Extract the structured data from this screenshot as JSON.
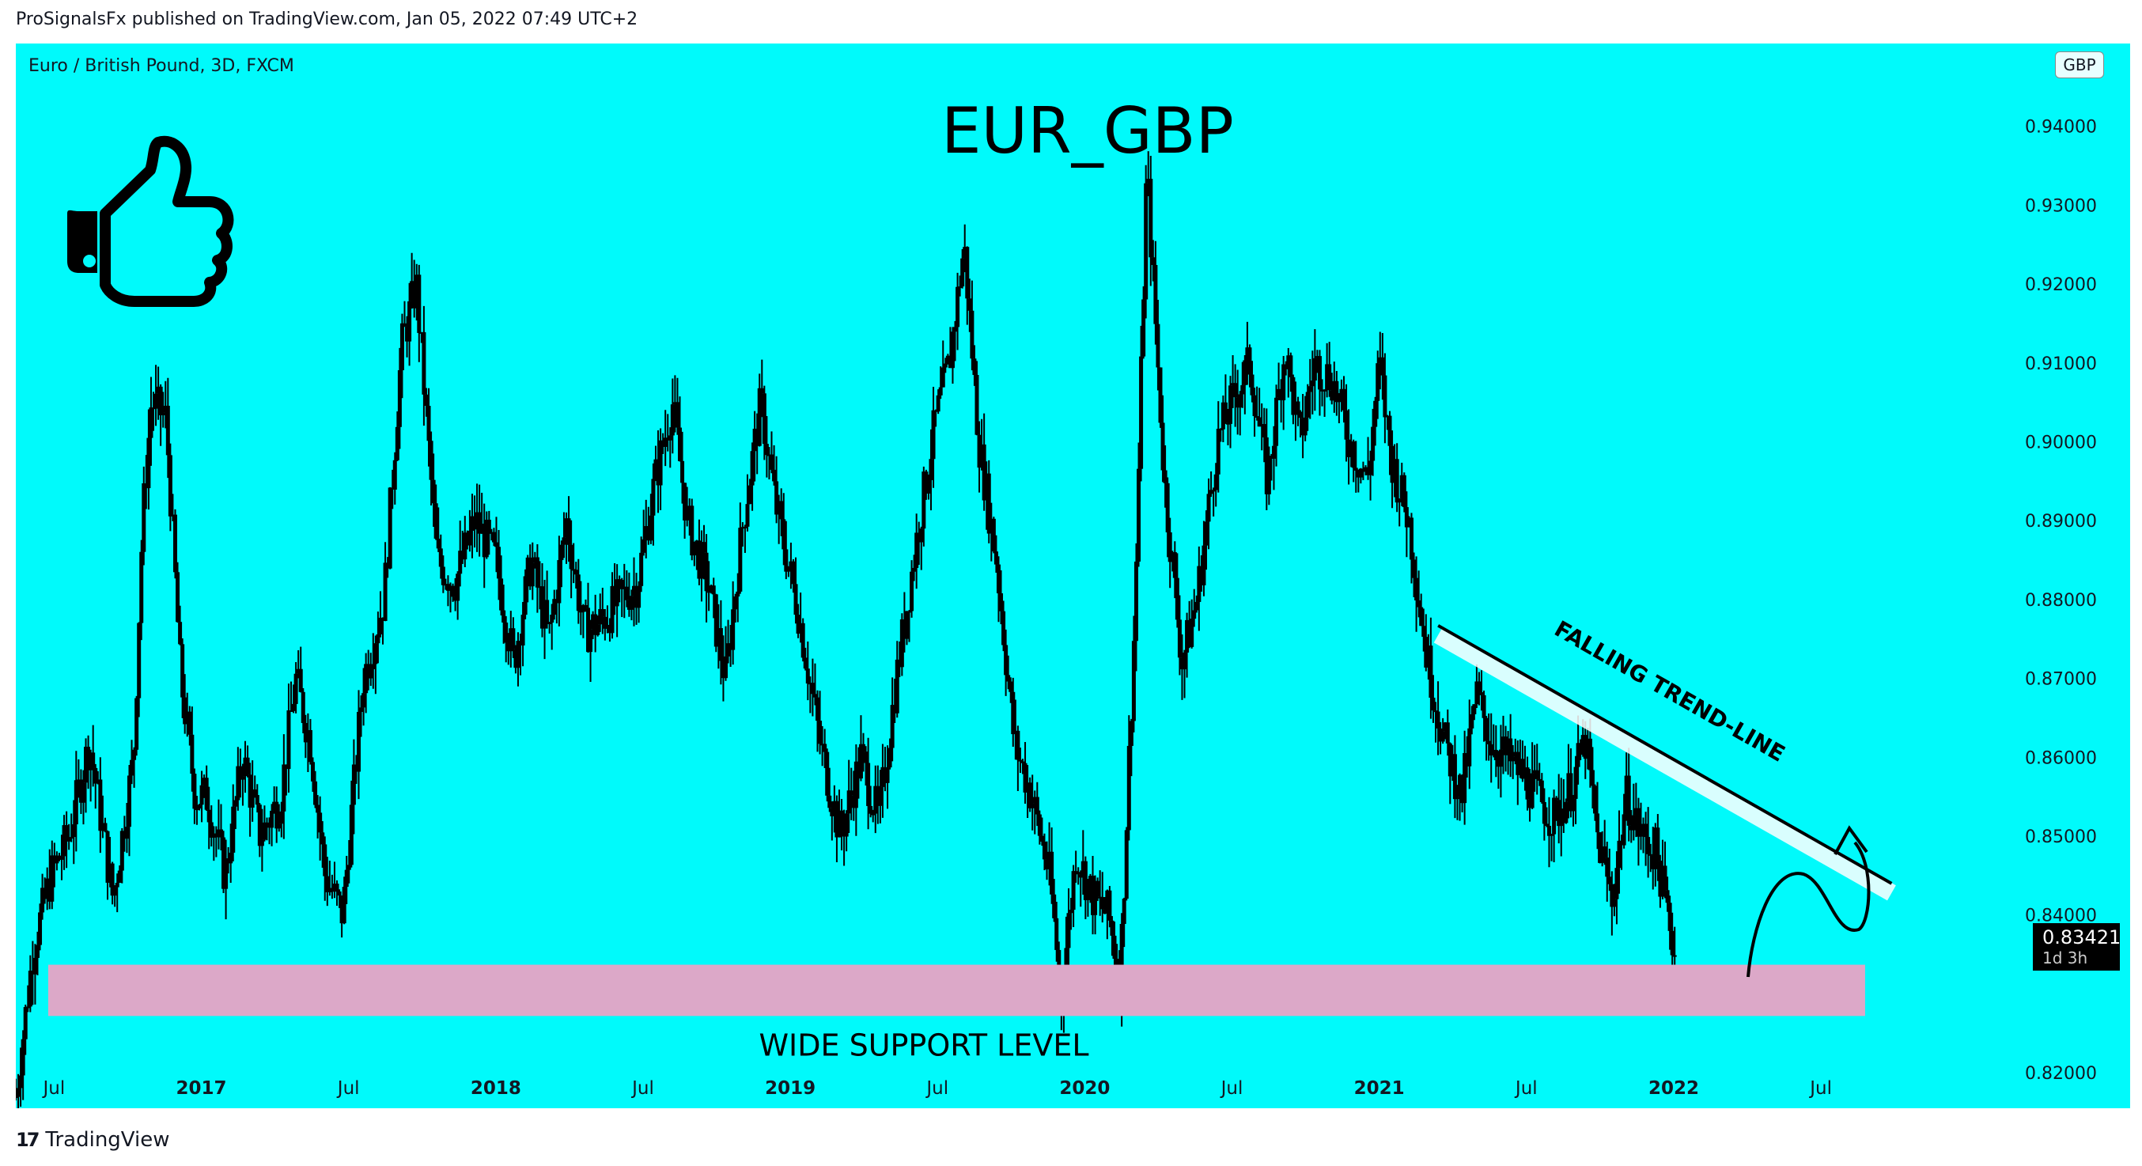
{
  "header": {
    "published": "ProSignalsFx published on TradingView.com, Jan 05, 2022 07:49 UTC+2"
  },
  "footer": {
    "brand": "TradingView",
    "logo_glyph": "17"
  },
  "chart_data": {
    "type": "candlestick",
    "symbol": "Euro / British Pound, 3D, FXCM",
    "title": "EUR_GBP",
    "currency": "GBP",
    "y_ticks": [
      "0.94000",
      "0.93000",
      "0.92000",
      "0.91000",
      "0.90000",
      "0.89000",
      "0.88000",
      "0.87000",
      "0.86000",
      "0.85000",
      "0.84000",
      "0.82000"
    ],
    "y_tick_values": [
      0.94,
      0.93,
      0.92,
      0.91,
      0.9,
      0.89,
      0.88,
      0.87,
      0.86,
      0.85,
      0.84,
      0.82
    ],
    "ylim": [
      0.8155,
      0.9505
    ],
    "x_ticks": [
      "Jul",
      "2017",
      "Jul",
      "2018",
      "Jul",
      "2019",
      "Jul",
      "2020",
      "Jul",
      "2021",
      "Jul",
      "2022",
      "Jul"
    ],
    "x_tick_values": [
      2016.5,
      2017.0,
      2017.5,
      2018.0,
      2018.5,
      2019.0,
      2019.5,
      2020.0,
      2020.5,
      2021.0,
      2021.5,
      2022.0,
      2022.5
    ],
    "x_bold_ticks": [
      "2017",
      "2018",
      "2019",
      "2020",
      "2021",
      "2022"
    ],
    "xlim": [
      2016.37,
      2023.55
    ],
    "price_series": [
      [
        2016.37,
        0.817
      ],
      [
        2016.43,
        0.836
      ],
      [
        2016.49,
        0.845
      ],
      [
        2016.55,
        0.85
      ],
      [
        2016.62,
        0.862
      ],
      [
        2016.7,
        0.842
      ],
      [
        2016.77,
        0.86
      ],
      [
        2016.8,
        0.89
      ],
      [
        2016.83,
        0.905
      ],
      [
        2016.88,
        0.903
      ],
      [
        2016.93,
        0.87
      ],
      [
        2016.98,
        0.855
      ],
      [
        2017.02,
        0.855
      ],
      [
        2017.08,
        0.845
      ],
      [
        2017.14,
        0.86
      ],
      [
        2017.2,
        0.85
      ],
      [
        2017.27,
        0.855
      ],
      [
        2017.32,
        0.87
      ],
      [
        2017.37,
        0.862
      ],
      [
        2017.42,
        0.845
      ],
      [
        2017.48,
        0.84
      ],
      [
        2017.55,
        0.87
      ],
      [
        2017.62,
        0.88
      ],
      [
        2017.68,
        0.912
      ],
      [
        2017.73,
        0.92
      ],
      [
        2017.76,
        0.905
      ],
      [
        2017.8,
        0.885
      ],
      [
        2017.86,
        0.882
      ],
      [
        2017.93,
        0.89
      ],
      [
        2018.0,
        0.885
      ],
      [
        2018.06,
        0.872
      ],
      [
        2018.12,
        0.885
      ],
      [
        2018.18,
        0.875
      ],
      [
        2018.24,
        0.89
      ],
      [
        2018.3,
        0.876
      ],
      [
        2018.35,
        0.877
      ],
      [
        2018.42,
        0.88
      ],
      [
        2018.48,
        0.882
      ],
      [
        2018.54,
        0.895
      ],
      [
        2018.6,
        0.905
      ],
      [
        2018.65,
        0.89
      ],
      [
        2018.72,
        0.882
      ],
      [
        2018.78,
        0.87
      ],
      [
        2018.84,
        0.89
      ],
      [
        2018.9,
        0.905
      ],
      [
        2018.95,
        0.892
      ],
      [
        2019.03,
        0.878
      ],
      [
        2019.1,
        0.862
      ],
      [
        2019.17,
        0.85
      ],
      [
        2019.24,
        0.86
      ],
      [
        2019.3,
        0.852
      ],
      [
        2019.36,
        0.87
      ],
      [
        2019.43,
        0.888
      ],
      [
        2019.49,
        0.902
      ],
      [
        2019.54,
        0.91
      ],
      [
        2019.59,
        0.925
      ],
      [
        2019.64,
        0.9
      ],
      [
        2019.7,
        0.885
      ],
      [
        2019.76,
        0.862
      ],
      [
        2019.82,
        0.855
      ],
      [
        2019.88,
        0.845
      ],
      [
        2019.92,
        0.83
      ],
      [
        2019.97,
        0.848
      ],
      [
        2020.03,
        0.842
      ],
      [
        2020.08,
        0.84
      ],
      [
        2020.12,
        0.832
      ],
      [
        2020.17,
        0.878
      ],
      [
        2020.21,
        0.935
      ],
      [
        2020.27,
        0.895
      ],
      [
        2020.33,
        0.872
      ],
      [
        2020.38,
        0.88
      ],
      [
        2020.45,
        0.9
      ],
      [
        2020.5,
        0.905
      ],
      [
        2020.56,
        0.91
      ],
      [
        2020.62,
        0.895
      ],
      [
        2020.68,
        0.912
      ],
      [
        2020.73,
        0.9
      ],
      [
        2020.78,
        0.91
      ],
      [
        2020.84,
        0.908
      ],
      [
        2020.9,
        0.9
      ],
      [
        2020.96,
        0.895
      ],
      [
        2021.0,
        0.91
      ],
      [
        2021.04,
        0.898
      ],
      [
        2021.1,
        0.89
      ],
      [
        2021.16,
        0.873
      ],
      [
        2021.22,
        0.862
      ],
      [
        2021.28,
        0.855
      ],
      [
        2021.33,
        0.868
      ],
      [
        2021.38,
        0.862
      ],
      [
        2021.43,
        0.86
      ],
      [
        2021.48,
        0.858
      ],
      [
        2021.54,
        0.855
      ],
      [
        2021.59,
        0.852
      ],
      [
        2021.65,
        0.856
      ],
      [
        2021.7,
        0.862
      ],
      [
        2021.74,
        0.85
      ],
      [
        2021.79,
        0.842
      ],
      [
        2021.84,
        0.855
      ],
      [
        2021.89,
        0.85
      ],
      [
        2021.94,
        0.848
      ],
      [
        2021.98,
        0.84
      ],
      [
        2022.01,
        0.8342
      ]
    ],
    "support_zone": {
      "low": 0.8272,
      "high": 0.8337,
      "x_start": 2016.48,
      "x_end": 2022.65,
      "label": "WIDE SUPPORT LEVEL"
    },
    "trend_line": {
      "x_start": 2021.2,
      "y_start": 0.8767,
      "x_end": 2022.74,
      "y_end": 0.844,
      "label": "FALLING TREND-LINE"
    },
    "last_price": "0.83421",
    "countdown": "1d 3h",
    "colors": {
      "background": "#00fafb",
      "candles": "#000000",
      "support": "#dca8c8",
      "trendline": "#000000",
      "trendline_shadow": "#ffffff"
    },
    "icons": [
      "thumbs-up-icon"
    ]
  }
}
